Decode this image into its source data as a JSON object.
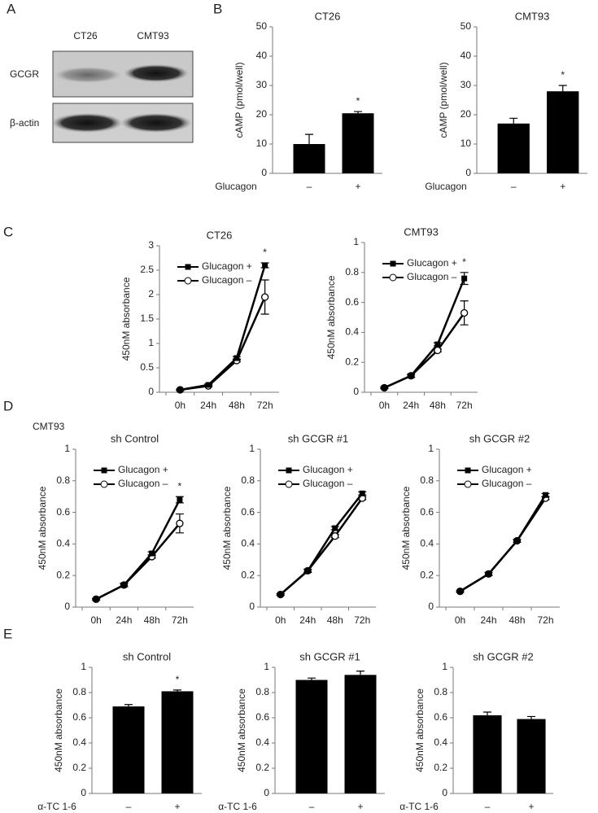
{
  "panel_labels": [
    "A",
    "B",
    "C",
    "D",
    "E"
  ],
  "blot": {
    "lanes": [
      "CT26",
      "CMT93"
    ],
    "rows": [
      "GCGR",
      "β-actin"
    ]
  },
  "panel_d_label": "CMT93",
  "chart_data": [
    {
      "type": "bar",
      "title": "CT26",
      "y_label": "cAMP (pmol/well)",
      "x_label": "Glucagon",
      "categories": [
        "–",
        "+"
      ],
      "values": [
        10,
        20.5
      ],
      "errors": [
        3.3,
        0.6
      ],
      "color": "#000000",
      "ylim": [
        0,
        50
      ],
      "yticks": [
        0,
        10,
        20,
        30,
        40,
        50
      ],
      "annotations": [
        {
          "text": "*",
          "x": "+"
        }
      ]
    },
    {
      "type": "bar",
      "title": "CMT93",
      "y_label": "cAMP (pmol/well)",
      "x_label": "Glucagon",
      "categories": [
        "–",
        "+"
      ],
      "values": [
        17,
        28
      ],
      "errors": [
        1.8,
        2
      ],
      "color": "#000000",
      "ylim": [
        0,
        50
      ],
      "yticks": [
        0,
        10,
        20,
        30,
        40,
        50
      ],
      "annotations": [
        {
          "text": "*",
          "x": "+"
        }
      ]
    },
    {
      "type": "line",
      "title": "CT26",
      "y_label": "450nM absorbance",
      "categories": [
        "0h",
        "24h",
        "48h",
        "72h"
      ],
      "series": [
        {
          "name": "Glucagon +",
          "color": "#000000",
          "marker": "filled-square",
          "values": [
            0.05,
            0.15,
            0.7,
            2.6
          ],
          "errors": [
            0.01,
            0.02,
            0.03,
            0.05
          ]
        },
        {
          "name": "Glucagon –",
          "color": "#000000",
          "marker": "open-circle",
          "values": [
            0.05,
            0.13,
            0.65,
            1.95
          ],
          "errors": [
            0.01,
            0.02,
            0.03,
            0.35
          ]
        }
      ],
      "ylim": [
        0,
        3
      ],
      "yticks": [
        0,
        0.5,
        1,
        1.5,
        2,
        2.5,
        3
      ],
      "annotations": [
        {
          "text": "*",
          "x": "72h"
        }
      ]
    },
    {
      "type": "line",
      "title": "CMT93",
      "y_label": "450nM absorbance",
      "categories": [
        "0h",
        "24h",
        "48h",
        "72h"
      ],
      "series": [
        {
          "name": "Glucagon +",
          "color": "#000000",
          "marker": "filled-square",
          "values": [
            0.03,
            0.11,
            0.32,
            0.76
          ],
          "errors": [
            0.005,
            0.01,
            0.01,
            0.04
          ]
        },
        {
          "name": "Glucagon –",
          "color": "#000000",
          "marker": "open-circle",
          "values": [
            0.03,
            0.11,
            0.28,
            0.53
          ],
          "errors": [
            0.005,
            0.01,
            0.01,
            0.08
          ]
        }
      ],
      "ylim": [
        0,
        1
      ],
      "yticks": [
        0,
        0.2,
        0.4,
        0.6,
        0.8,
        1
      ],
      "annotations": [
        {
          "text": "*",
          "x": "72h"
        }
      ]
    },
    {
      "type": "line",
      "title": "sh Control",
      "y_label": "450nM absorbance",
      "categories": [
        "0h",
        "24h",
        "48h",
        "72h"
      ],
      "series": [
        {
          "name": "Glucagon +",
          "color": "#000000",
          "marker": "filled-square",
          "values": [
            0.05,
            0.14,
            0.34,
            0.68
          ],
          "errors": [
            0.005,
            0.01,
            0.01,
            0.02
          ]
        },
        {
          "name": "Glucagon –",
          "color": "#000000",
          "marker": "open-circle",
          "values": [
            0.05,
            0.14,
            0.32,
            0.53
          ],
          "errors": [
            0.005,
            0.01,
            0.01,
            0.06
          ]
        }
      ],
      "ylim": [
        0,
        1
      ],
      "yticks": [
        0,
        0.2,
        0.4,
        0.6,
        0.8,
        1
      ],
      "annotations": [
        {
          "text": "*",
          "x": "72h"
        }
      ]
    },
    {
      "type": "line",
      "title": "sh GCGR #1",
      "y_label": "450nM absorbance",
      "categories": [
        "0h",
        "24h",
        "48h",
        "72h"
      ],
      "series": [
        {
          "name": "Glucagon +",
          "color": "#000000",
          "marker": "filled-square",
          "values": [
            0.08,
            0.23,
            0.5,
            0.72
          ],
          "errors": [
            0.005,
            0.01,
            0.01,
            0.01
          ]
        },
        {
          "name": "Glucagon –",
          "color": "#000000",
          "marker": "open-circle",
          "values": [
            0.08,
            0.23,
            0.45,
            0.69
          ],
          "errors": [
            0.005,
            0.01,
            0.01,
            0.01
          ]
        }
      ],
      "ylim": [
        0,
        1
      ],
      "yticks": [
        0,
        0.2,
        0.4,
        0.6,
        0.8,
        1
      ]
    },
    {
      "type": "line",
      "title": "sh GCGR #2",
      "y_label": "450nM absorbance",
      "categories": [
        "0h",
        "24h",
        "48h",
        "72h"
      ],
      "series": [
        {
          "name": "Glucagon +",
          "color": "#000000",
          "marker": "filled-square",
          "values": [
            0.1,
            0.21,
            0.42,
            0.71
          ],
          "errors": [
            0.005,
            0.01,
            0.01,
            0.01
          ]
        },
        {
          "name": "Glucagon –",
          "color": "#000000",
          "marker": "open-circle",
          "values": [
            0.1,
            0.21,
            0.42,
            0.69
          ],
          "errors": [
            0.005,
            0.01,
            0.01,
            0.01
          ]
        }
      ],
      "ylim": [
        0,
        1
      ],
      "yticks": [
        0,
        0.2,
        0.4,
        0.6,
        0.8,
        1
      ]
    },
    {
      "type": "bar",
      "title": "sh Control",
      "y_label": "450nM absorbance",
      "x_label": "α-TC 1-6",
      "categories": [
        "–",
        "+"
      ],
      "values": [
        0.69,
        0.81
      ],
      "errors": [
        0.015,
        0.01
      ],
      "color": "#000000",
      "ylim": [
        0,
        1
      ],
      "yticks": [
        0,
        0.2,
        0.4,
        0.6,
        0.8,
        1
      ],
      "annotations": [
        {
          "text": "*",
          "x": "+"
        }
      ]
    },
    {
      "type": "bar",
      "title": "sh GCGR #1",
      "y_label": "450nM absorbance",
      "x_label": "α-TC 1-6",
      "categories": [
        "–",
        "+"
      ],
      "values": [
        0.9,
        0.94
      ],
      "errors": [
        0.015,
        0.03
      ],
      "color": "#000000",
      "ylim": [
        0,
        1
      ],
      "yticks": [
        0,
        0.2,
        0.4,
        0.6,
        0.8,
        1
      ]
    },
    {
      "type": "bar",
      "title": "sh GCGR #2",
      "y_label": "450nM absorbance",
      "x_label": "α-TC 1-6",
      "categories": [
        "–",
        "+"
      ],
      "values": [
        0.62,
        0.59
      ],
      "errors": [
        0.025,
        0.02
      ],
      "color": "#000000",
      "ylim": [
        0,
        1
      ],
      "yticks": [
        0,
        0.2,
        0.4,
        0.6,
        0.8,
        1
      ]
    }
  ]
}
